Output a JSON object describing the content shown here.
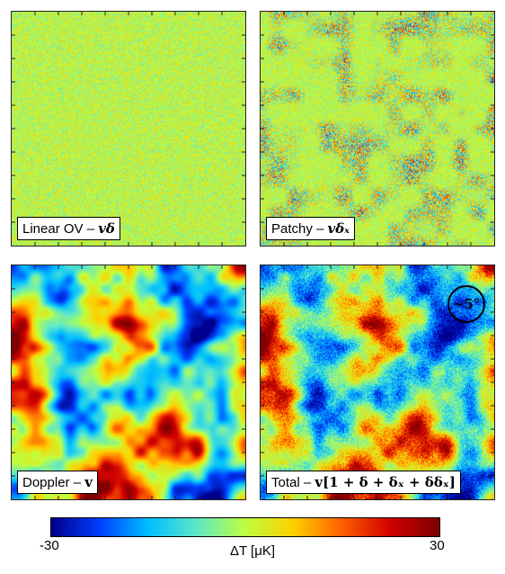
{
  "figure": {
    "panels": [
      {
        "id": "linear-ov",
        "label_prefix": "Linear OV – ",
        "label_math": "vδ",
        "style": "noise_fine"
      },
      {
        "id": "patchy",
        "label_prefix": "Patchy – ",
        "label_math": "vδₓ",
        "style": "noise_patchy"
      },
      {
        "id": "doppler",
        "label_prefix": "Doppler – ",
        "label_math": "v",
        "style": "smooth"
      },
      {
        "id": "total",
        "label_prefix": "Total – ",
        "label_math": "v[1 + δ + δₓ + δδₓ]",
        "style": "smooth_noisy"
      }
    ],
    "scale_marker": "~5°",
    "colorbar": {
      "min_label": "-30",
      "max_label": "30",
      "label": "ΔT [μK]",
      "colors": [
        "#00008f",
        "#0040ff",
        "#00bfff",
        "#5fe8c8",
        "#bfff3f",
        "#ffd000",
        "#ff6000",
        "#d00000",
        "#800000"
      ]
    }
  }
}
